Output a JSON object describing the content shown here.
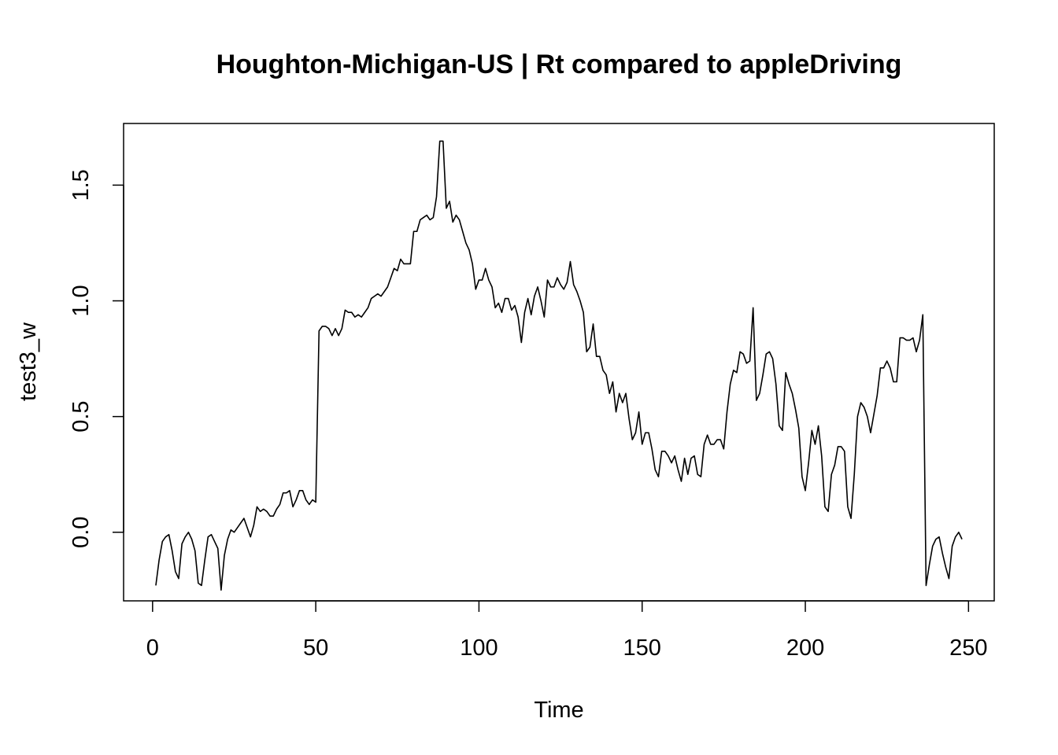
{
  "chart_data": {
    "type": "line",
    "title": "Houghton-Michigan-US | Rt compared to appleDriving",
    "xlabel": "Time",
    "ylabel": "test3_w",
    "xlim": [
      0,
      250
    ],
    "ylim": [
      -0.22,
      1.69
    ],
    "grid": false,
    "legend": "none",
    "x_ticks": [
      0,
      50,
      100,
      150,
      200,
      250
    ],
    "x_tick_labels": [
      "0",
      "50",
      "100",
      "150",
      "200",
      "250"
    ],
    "y_ticks": [
      0.0,
      0.5,
      1.0,
      1.5
    ],
    "y_tick_labels": [
      "0.0",
      "0.5",
      "1.0",
      "1.5"
    ],
    "line_color": "#000000",
    "series": [
      {
        "values": [
          -0.23,
          -0.12,
          -0.04,
          -0.02,
          -0.01,
          -0.08,
          -0.17,
          -0.2,
          -0.05,
          -0.02,
          0.0,
          -0.03,
          -0.08,
          -0.22,
          -0.23,
          -0.12,
          -0.02,
          -0.01,
          -0.04,
          -0.07,
          -0.25,
          -0.1,
          -0.03,
          0.01,
          0.0,
          0.02,
          0.04,
          0.06,
          0.02,
          -0.02,
          0.03,
          0.11,
          0.09,
          0.1,
          0.09,
          0.07,
          0.07,
          0.1,
          0.12,
          0.17,
          0.17,
          0.18,
          0.11,
          0.14,
          0.18,
          0.18,
          0.14,
          0.12,
          0.14,
          0.13,
          0.87,
          0.89,
          0.89,
          0.88,
          0.85,
          0.88,
          0.85,
          0.88,
          0.96,
          0.95,
          0.95,
          0.93,
          0.94,
          0.93,
          0.95,
          0.97,
          1.01,
          1.02,
          1.03,
          1.02,
          1.04,
          1.06,
          1.1,
          1.14,
          1.13,
          1.18,
          1.16,
          1.16,
          1.16,
          1.3,
          1.3,
          1.35,
          1.36,
          1.37,
          1.35,
          1.36,
          1.45,
          1.69,
          1.69,
          1.4,
          1.43,
          1.34,
          1.37,
          1.35,
          1.3,
          1.25,
          1.22,
          1.16,
          1.05,
          1.09,
          1.09,
          1.14,
          1.09,
          1.06,
          0.97,
          0.99,
          0.95,
          1.01,
          1.01,
          0.96,
          0.98,
          0.93,
          0.82,
          0.95,
          1.01,
          0.94,
          1.02,
          1.06,
          1.0,
          0.93,
          1.09,
          1.06,
          1.06,
          1.1,
          1.07,
          1.05,
          1.08,
          1.17,
          1.07,
          1.04,
          1.0,
          0.95,
          0.78,
          0.8,
          0.9,
          0.76,
          0.76,
          0.7,
          0.68,
          0.6,
          0.65,
          0.52,
          0.6,
          0.56,
          0.6,
          0.49,
          0.4,
          0.43,
          0.52,
          0.38,
          0.43,
          0.43,
          0.36,
          0.27,
          0.24,
          0.35,
          0.35,
          0.33,
          0.3,
          0.33,
          0.27,
          0.22,
          0.32,
          0.25,
          0.32,
          0.33,
          0.25,
          0.24,
          0.38,
          0.42,
          0.38,
          0.38,
          0.4,
          0.4,
          0.36,
          0.52,
          0.64,
          0.7,
          0.69,
          0.78,
          0.77,
          0.73,
          0.74,
          0.97,
          0.57,
          0.6,
          0.68,
          0.77,
          0.78,
          0.75,
          0.64,
          0.46,
          0.44,
          0.69,
          0.64,
          0.6,
          0.53,
          0.45,
          0.24,
          0.18,
          0.3,
          0.44,
          0.38,
          0.46,
          0.33,
          0.11,
          0.09,
          0.25,
          0.29,
          0.37,
          0.37,
          0.35,
          0.11,
          0.06,
          0.25,
          0.5,
          0.56,
          0.54,
          0.5,
          0.43,
          0.51,
          0.59,
          0.71,
          0.71,
          0.74,
          0.71,
          0.65,
          0.65,
          0.84,
          0.84,
          0.83,
          0.83,
          0.84,
          0.78,
          0.83,
          0.94,
          -0.23,
          -0.14,
          -0.06,
          -0.03,
          -0.02,
          -0.09,
          -0.15,
          -0.2,
          -0.06,
          -0.02,
          0.0,
          -0.03
        ]
      }
    ]
  }
}
